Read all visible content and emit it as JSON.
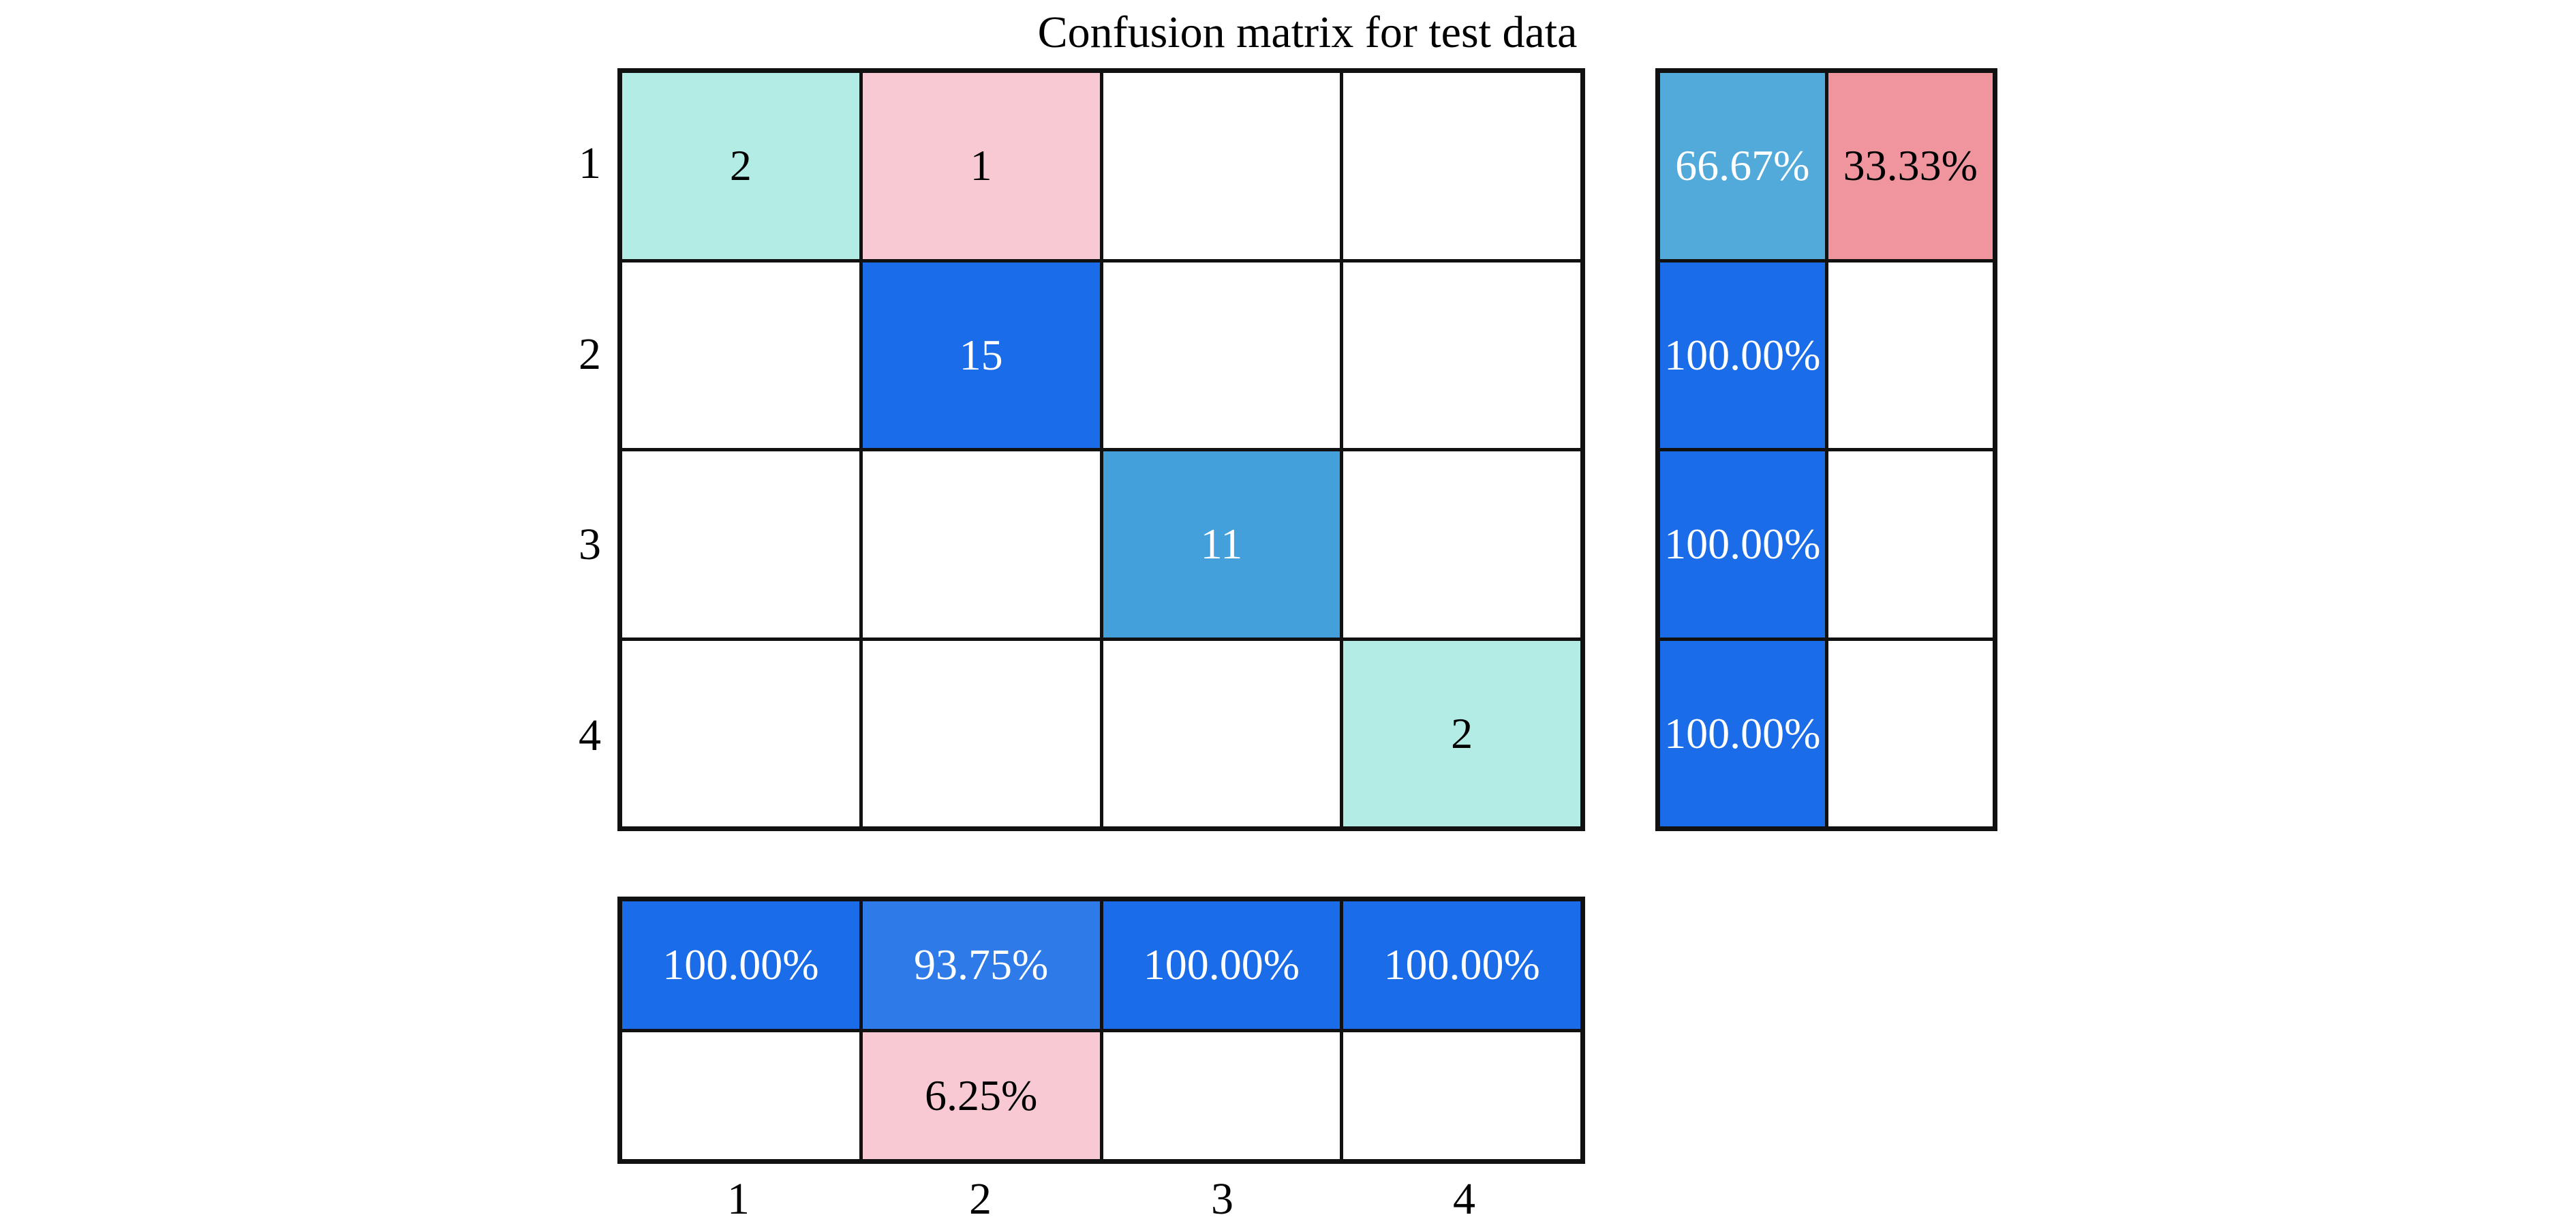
{
  "title": "Confusion matrix for test data",
  "axis": {
    "row_labels": [
      "1",
      "2",
      "3",
      "4"
    ],
    "col_labels": [
      "1",
      "2",
      "3",
      "4"
    ]
  },
  "main_grid": {
    "cells": [
      [
        "2",
        "1",
        "",
        ""
      ],
      [
        "",
        "15",
        "",
        ""
      ],
      [
        "",
        "",
        "11",
        ""
      ],
      [
        "",
        "",
        "",
        "2"
      ]
    ]
  },
  "row_summary": {
    "cells": [
      [
        "66.67%",
        "33.33%"
      ],
      [
        "100.00%",
        ""
      ],
      [
        "100.00%",
        ""
      ],
      [
        "100.00%",
        ""
      ]
    ]
  },
  "col_summary": {
    "cells": [
      [
        "100.00%",
        "93.75%",
        "100.00%",
        "100.00%"
      ],
      [
        "",
        "6.25%",
        "",
        ""
      ]
    ]
  },
  "palette": {
    "border": "#111111",
    "background": "#ffffff",
    "teal_light_count": "#b3ece4",
    "pink_light_error": "#f8c9d3",
    "blue_strong": "#1b6ce8",
    "blue_93_75": "#2d7ae8",
    "blue_medium": "#44a0da",
    "blue_sky": "#52aadb",
    "salmon_error": "#f0949e",
    "text_dark": "#000000",
    "text_light": "#ffffff"
  },
  "chart_data": {
    "type": "heatmap",
    "title": "Confusion matrix for test data",
    "classes": [
      "1",
      "2",
      "3",
      "4"
    ],
    "matrix": [
      [
        2,
        1,
        0,
        0
      ],
      [
        0,
        15,
        0,
        0
      ],
      [
        0,
        0,
        11,
        0
      ],
      [
        0,
        0,
        0,
        2
      ]
    ],
    "row_percent_correct": [
      "66.67%",
      "100.00%",
      "100.00%",
      "100.00%"
    ],
    "row_percent_incorrect": [
      "33.33%",
      "",
      "",
      ""
    ],
    "col_percent_correct": [
      "100.00%",
      "93.75%",
      "100.00%",
      "100.00%"
    ],
    "col_percent_incorrect": [
      "",
      "6.25%",
      "",
      ""
    ],
    "legend_position": "none",
    "grid": true
  }
}
